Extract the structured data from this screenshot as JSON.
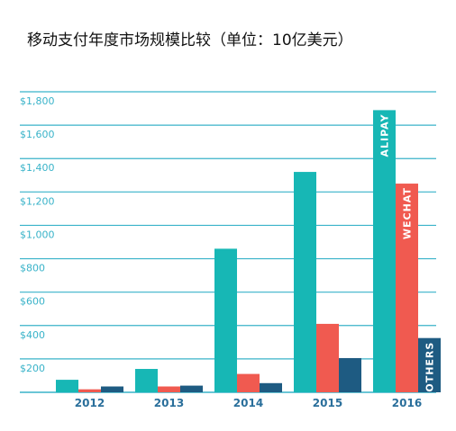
{
  "title": "移动支付年度市场规模比较（单位：10亿美元）",
  "colors": {
    "alipay": "#17b7b5",
    "wechat": "#f05a50",
    "others": "#1e5b82",
    "grid": "#39b3c9",
    "tick_text": "#39b3c9",
    "xtick_text": "#2a6f9b"
  },
  "chart_data": {
    "type": "bar",
    "title": "移动支付年度市场规模比较（单位：10亿美元）",
    "categories": [
      "2012",
      "2013",
      "2014",
      "2015",
      "2016"
    ],
    "series": [
      {
        "name": "ALIPAY",
        "values": [
          75,
          140,
          860,
          1320,
          1690
        ]
      },
      {
        "name": "WECHAT",
        "values": [
          18,
          35,
          110,
          410,
          1250
        ]
      },
      {
        "name": "OTHERS",
        "values": [
          35,
          40,
          55,
          205,
          325
        ]
      }
    ],
    "yticks": [
      "$200",
      "$400",
      "$600",
      "$800",
      "$1,000",
      "$1,200",
      "$1,400",
      "$1,600",
      "$1,800"
    ],
    "ytick_values": [
      200,
      400,
      600,
      800,
      1000,
      1200,
      1400,
      1600,
      1800
    ],
    "ylim": [
      0,
      1800
    ],
    "xlabel": "",
    "ylabel": "",
    "grid": true,
    "legend": "labels on 2016 bars"
  }
}
